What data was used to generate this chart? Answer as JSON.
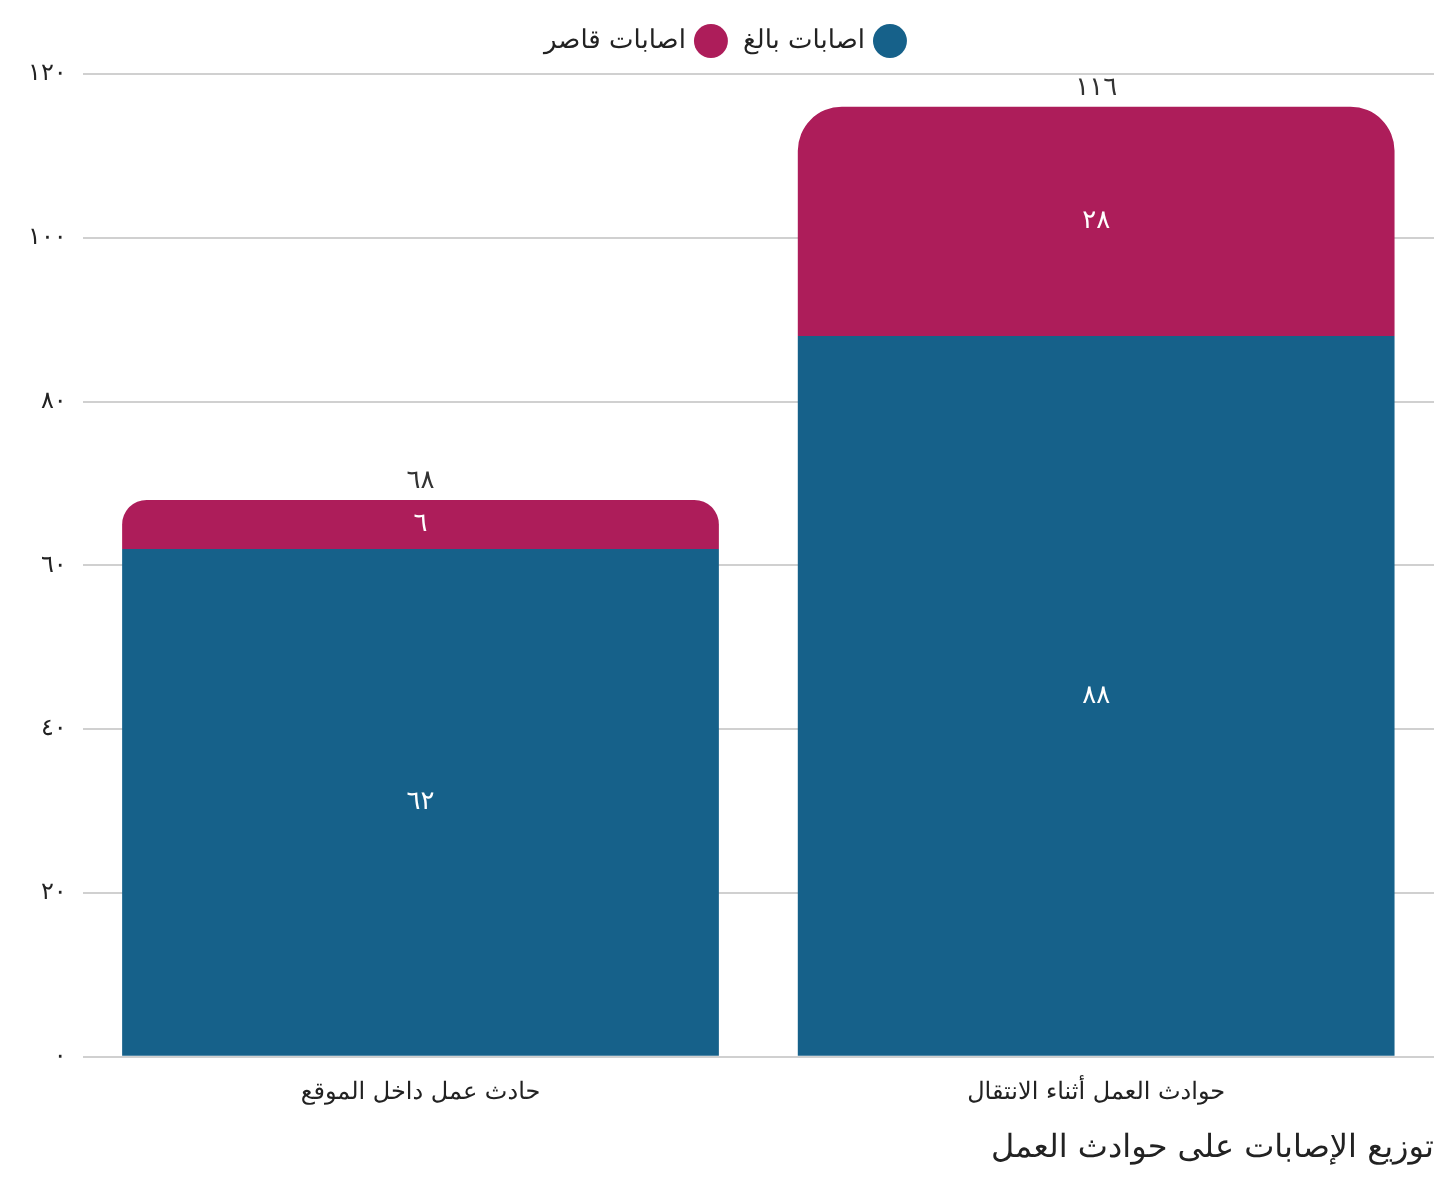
{
  "chart_data": {
    "type": "bar",
    "stacked": true,
    "title": "توزيع الإصابات على حوادث العمل",
    "categories": [
      "حادث عمل داخل الموقع",
      "حوادث العمل أثناء الانتقال"
    ],
    "series": [
      {
        "name": "اصابات بالغ",
        "color": "#16618a",
        "values": [
          62,
          88
        ],
        "value_labels": [
          "٦٢",
          "٨٨"
        ]
      },
      {
        "name": "اصابات قاصر",
        "color": "#ad1d5a",
        "values": [
          6,
          28
        ],
        "value_labels": [
          "٦",
          "٢٨"
        ]
      }
    ],
    "totals": [
      "٦٨",
      "١١٦"
    ],
    "ylim": [
      0,
      120
    ],
    "yticks": [
      {
        "value": 0,
        "label": "٠"
      },
      {
        "value": 20,
        "label": "٢٠"
      },
      {
        "value": 40,
        "label": "٤٠"
      },
      {
        "value": 60,
        "label": "٦٠"
      },
      {
        "value": 80,
        "label": "٨٠"
      },
      {
        "value": 100,
        "label": "١٠٠"
      },
      {
        "value": 120,
        "label": "١٢٠"
      }
    ],
    "grid": "y",
    "legend": "top"
  }
}
